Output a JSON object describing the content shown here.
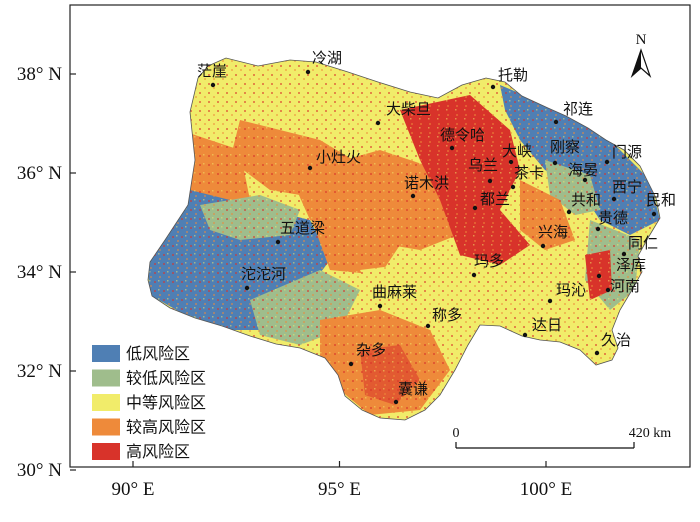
{
  "axes": {
    "lat_ticks": [
      {
        "label": "38° N",
        "lat": 38
      },
      {
        "label": "36° N",
        "lat": 36
      },
      {
        "label": "34° N",
        "lat": 34
      },
      {
        "label": "32° N",
        "lat": 32
      },
      {
        "label": "30° N",
        "lat": 30
      }
    ],
    "lon_ticks": [
      {
        "label": "90° E",
        "lon": 90
      },
      {
        "label": "95° E",
        "lon": 95
      },
      {
        "label": "100° E",
        "lon": 100
      }
    ]
  },
  "north_arrow": {
    "label": "N"
  },
  "scale_bar": {
    "start_label": "0",
    "end_label": "420 km"
  },
  "legend": {
    "items": [
      {
        "label": "低风险区",
        "color": "#4f7fb4"
      },
      {
        "label": "较低风险区",
        "color": "#9fbd8c"
      },
      {
        "label": "中等风险区",
        "color": "#f1ec6a"
      },
      {
        "label": "较高风险区",
        "color": "#ee8a3a"
      },
      {
        "label": "高风险区",
        "color": "#d8332a"
      }
    ]
  },
  "places": [
    {
      "name": "茫崖"
    },
    {
      "name": "冷湖"
    },
    {
      "name": "托勒"
    },
    {
      "name": "大柴旦"
    },
    {
      "name": "祁连"
    },
    {
      "name": "德令哈"
    },
    {
      "name": "门源"
    },
    {
      "name": "刚察"
    },
    {
      "name": "大峡"
    },
    {
      "name": "小灶火"
    },
    {
      "name": "乌兰"
    },
    {
      "name": "海晏"
    },
    {
      "name": "茶卡"
    },
    {
      "name": "西宁"
    },
    {
      "name": "诺木洪"
    },
    {
      "name": "共和"
    },
    {
      "name": "民和"
    },
    {
      "name": "都兰"
    },
    {
      "name": "贵德"
    },
    {
      "name": "五道梁"
    },
    {
      "name": "兴海"
    },
    {
      "name": "同仁"
    },
    {
      "name": "玛多"
    },
    {
      "name": "泽库"
    },
    {
      "name": "沱沱河"
    },
    {
      "name": "河南"
    },
    {
      "name": "曲麻莱"
    },
    {
      "name": "玛沁"
    },
    {
      "name": "称多"
    },
    {
      "name": "达日"
    },
    {
      "name": "久治"
    },
    {
      "name": "杂多"
    },
    {
      "name": "囊谦"
    }
  ]
}
